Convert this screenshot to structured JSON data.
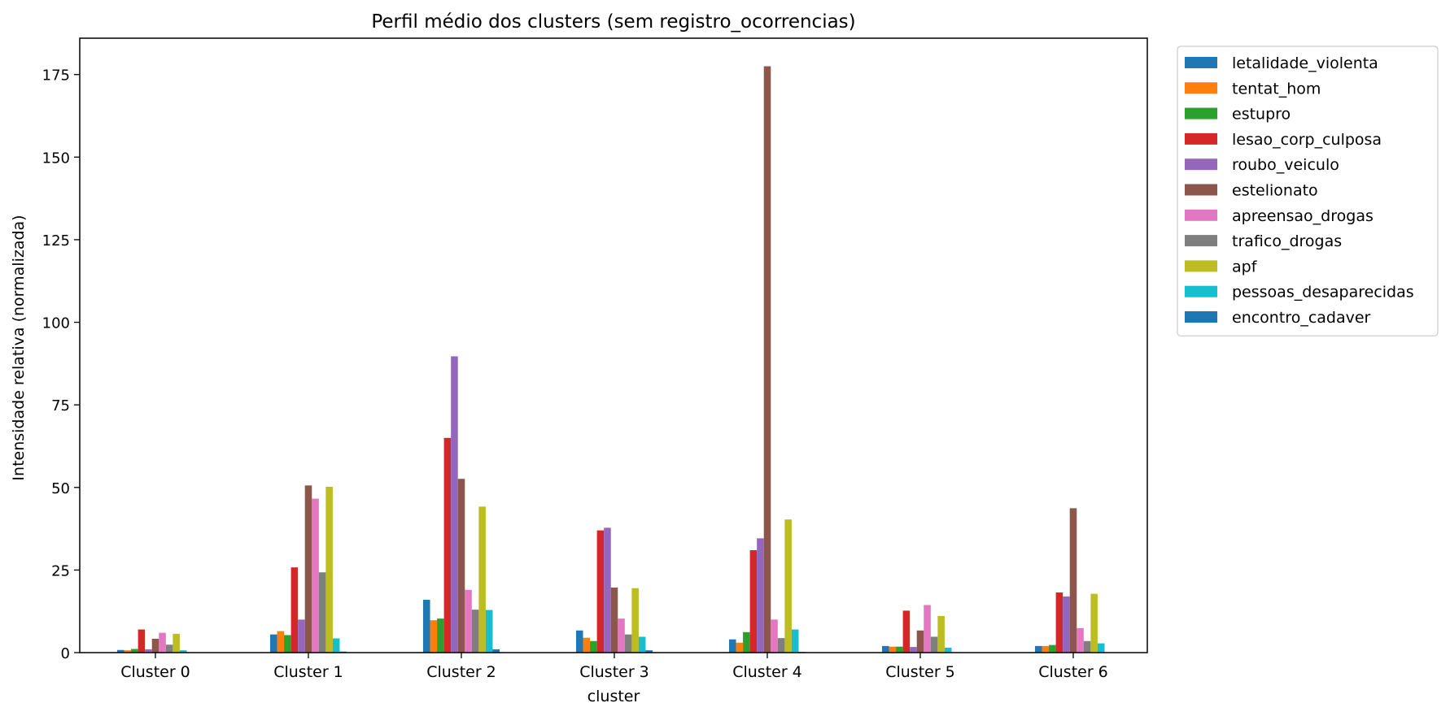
{
  "chart_data": {
    "type": "bar",
    "title": "Perfil médio dos clusters (sem registro_ocorrencias)",
    "xlabel": "cluster",
    "ylabel": "Intensidade relativa (normalizada)",
    "ylim": [
      0,
      186
    ],
    "yticks": [
      0,
      25,
      50,
      75,
      100,
      125,
      150,
      175
    ],
    "grid": false,
    "legend_position": "outside-top-right",
    "categories": [
      "Cluster 0",
      "Cluster 1",
      "Cluster 2",
      "Cluster 3",
      "Cluster 4",
      "Cluster 5",
      "Cluster 6"
    ],
    "series": [
      {
        "name": "letalidade_violenta",
        "color": "#1f77b4",
        "values": [
          0.8,
          5.5,
          16,
          6.7,
          4.0,
          2.0,
          2.0
        ]
      },
      {
        "name": "tentat_hom",
        "color": "#ff7f0e",
        "values": [
          0.7,
          6.5,
          9.8,
          4.5,
          3.0,
          1.8,
          2.0
        ]
      },
      {
        "name": "estupro",
        "color": "#2ca02c",
        "values": [
          1.1,
          5.3,
          10.3,
          3.5,
          6.2,
          1.8,
          2.3
        ]
      },
      {
        "name": "lesao_corp_culposa",
        "color": "#d62728",
        "values": [
          7.0,
          25.8,
          65.0,
          37.0,
          31.0,
          12.7,
          18.2
        ]
      },
      {
        "name": "roubo_veiculo",
        "color": "#9467bd",
        "values": [
          1.0,
          10.0,
          89.7,
          37.8,
          34.6,
          1.7,
          17.0
        ]
      },
      {
        "name": "estelionato",
        "color": "#8c564b",
        "values": [
          4.2,
          50.6,
          52.6,
          19.7,
          177.5,
          6.7,
          43.7
        ]
      },
      {
        "name": "apreensao_drogas",
        "color": "#e377c2",
        "values": [
          6.0,
          46.6,
          19.0,
          10.3,
          10.0,
          14.4,
          7.4
        ]
      },
      {
        "name": "trafico_drogas",
        "color": "#7f7f7f",
        "values": [
          2.4,
          24.3,
          13.0,
          5.5,
          4.4,
          4.8,
          3.5
        ]
      },
      {
        "name": "apf",
        "color": "#bcbd22",
        "values": [
          5.7,
          50.2,
          44.2,
          19.5,
          40.3,
          11.1,
          17.8
        ]
      },
      {
        "name": "pessoas_desaparecidas",
        "color": "#17becf",
        "values": [
          0.7,
          4.3,
          12.9,
          4.8,
          7.0,
          1.5,
          2.8
        ]
      },
      {
        "name": "encontro_cadaver",
        "color": "#1f77b4",
        "values": [
          0.1,
          0.3,
          1.0,
          0.7,
          0.2,
          0.1,
          0.1
        ]
      }
    ]
  }
}
